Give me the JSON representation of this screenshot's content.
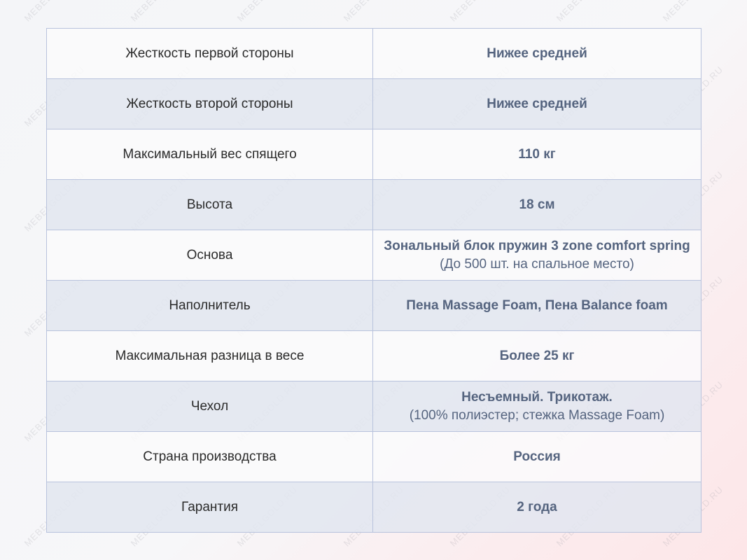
{
  "watermark": "MEBELGOLD.RU",
  "rows": [
    {
      "label": "Жесткость первой стороны",
      "value": "Нижее средней",
      "note": ""
    },
    {
      "label": "Жесткость второй стороны",
      "value": "Нижее средней",
      "note": ""
    },
    {
      "label": "Максимальный вес спящего",
      "value": "110 кг",
      "note": ""
    },
    {
      "label": "Высота",
      "value": "18 см",
      "note": ""
    },
    {
      "label": "Основа",
      "value": "Зональный блок пружин 3 zone comfort spring",
      "note": "(До 500 шт. на спальное место)"
    },
    {
      "label": "Наполнитель",
      "value": "Пена Massage Foam, Пена Balance foam",
      "note": ""
    },
    {
      "label": "Максимальная разница в весе",
      "value": "Более 25 кг",
      "note": ""
    },
    {
      "label": "Чехол",
      "value": "Несъемный. Трикотаж.",
      "note": "(100% полиэстер; стежка Massage Foam)"
    },
    {
      "label": "Страна производства",
      "value": "Россия",
      "note": ""
    },
    {
      "label": "Гарантия",
      "value": "2 года",
      "note": ""
    }
  ]
}
